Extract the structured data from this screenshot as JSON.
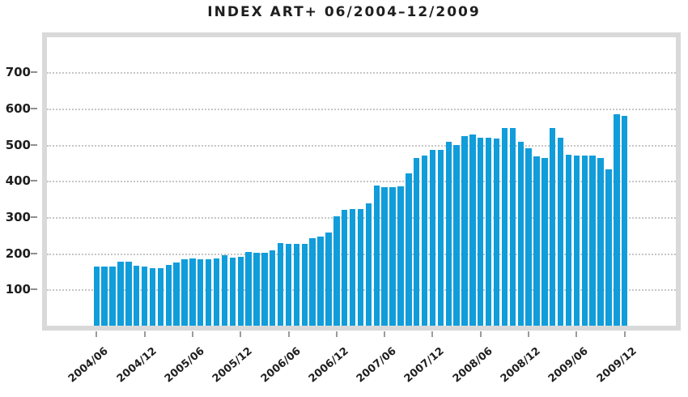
{
  "chart_data": {
    "type": "bar",
    "title": "INDEX ART+ 06/2004–12/2009",
    "xlabel": "",
    "ylabel": "",
    "x": [
      "2004/06",
      "2004/07",
      "2004/08",
      "2004/09",
      "2004/10",
      "2004/11",
      "2004/12",
      "2005/01",
      "2005/02",
      "2005/03",
      "2005/04",
      "2005/05",
      "2005/06",
      "2005/07",
      "2005/08",
      "2005/09",
      "2005/10",
      "2005/11",
      "2005/12",
      "2006/01",
      "2006/02",
      "2006/03",
      "2006/04",
      "2006/05",
      "2006/06",
      "2006/07",
      "2006/08",
      "2006/09",
      "2006/10",
      "2006/11",
      "2006/12",
      "2007/01",
      "2007/02",
      "2007/03",
      "2007/04",
      "2007/05",
      "2007/06",
      "2007/07",
      "2007/08",
      "2007/09",
      "2007/10",
      "2007/11",
      "2007/12",
      "2008/01",
      "2008/02",
      "2008/03",
      "2008/04",
      "2008/05",
      "2008/06",
      "2008/07",
      "2008/08",
      "2008/09",
      "2008/10",
      "2008/11",
      "2008/12",
      "2009/01",
      "2009/02",
      "2009/03",
      "2009/04",
      "2009/05",
      "2009/06",
      "2009/07",
      "2009/08",
      "2009/09",
      "2009/10",
      "2009/11",
      "2009/12"
    ],
    "values": [
      165,
      164,
      164,
      179,
      177,
      166,
      165,
      160,
      160,
      170,
      175,
      185,
      186,
      185,
      185,
      186,
      196,
      190,
      191,
      205,
      202,
      203,
      210,
      230,
      226,
      226,
      226,
      242,
      247,
      258,
      303,
      320,
      324,
      324,
      340,
      388,
      384,
      384,
      385,
      422,
      465,
      472,
      486,
      486,
      509,
      501,
      524,
      528,
      520,
      520,
      519,
      547,
      546,
      510,
      492,
      468,
      464,
      546,
      520,
      473,
      470,
      470,
      472,
      464,
      433,
      585,
      581
    ],
    "x_tick_labels": [
      "2004/06",
      "2004/12",
      "2005/06",
      "2005/12",
      "2006/06",
      "2006/12",
      "2007/06",
      "2007/12",
      "2008/06",
      "2008/12",
      "2009/06",
      "2009/12"
    ],
    "y_ticks": [
      100,
      200,
      300,
      400,
      500,
      600,
      700
    ],
    "ylim": [
      0,
      797
    ],
    "grid": "horizontal-dotted",
    "legend": "none",
    "colors": {
      "bar": "#109dda",
      "frame": "#d9d9d9",
      "gridline": "#c6c6c6",
      "tick": "#8f8f8f",
      "text": "#1e1e1e"
    }
  }
}
